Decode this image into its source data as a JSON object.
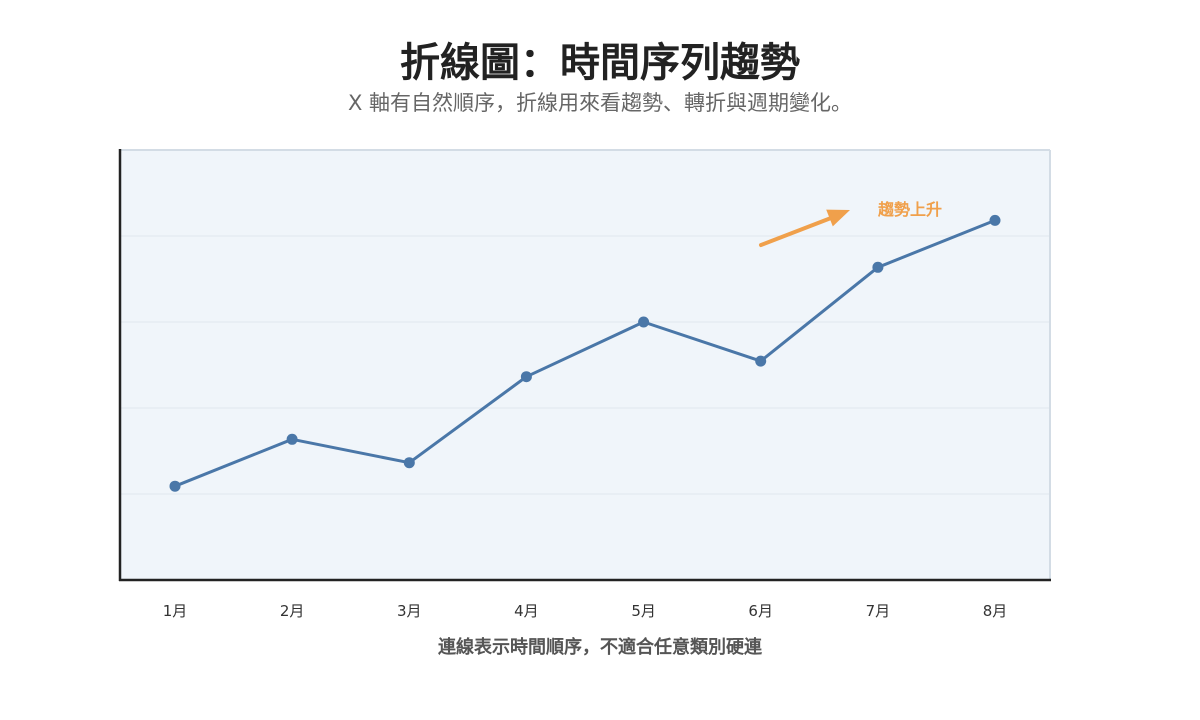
{
  "chart_data": {
    "type": "line",
    "title": "折線圖：時間序列趨勢",
    "subtitle": "X 軸有自然順序，折線用來看趨勢、轉折與週期變化。",
    "categories": [
      "1月",
      "2月",
      "3月",
      "4月",
      "5月",
      "6月",
      "7月",
      "8月"
    ],
    "series": [
      {
        "values": [
          12,
          18,
          15,
          26,
          33,
          28,
          40,
          46
        ]
      }
    ],
    "xlabel": "連線表示時間順序，不適合任意類別硬連",
    "ylabel": "",
    "ylim": [
      0,
      55
    ],
    "y_tick_labels_shown": false,
    "grid": true,
    "annotations": [
      {
        "text": "趨勢上升"
      }
    ],
    "colors": {
      "line": "#4a77a8",
      "annotation": "#f0a04b",
      "plot_background": "#f0f5fa",
      "grid": "#dfe6ed",
      "axis": "#222222",
      "border": "#d3dce5"
    }
  }
}
